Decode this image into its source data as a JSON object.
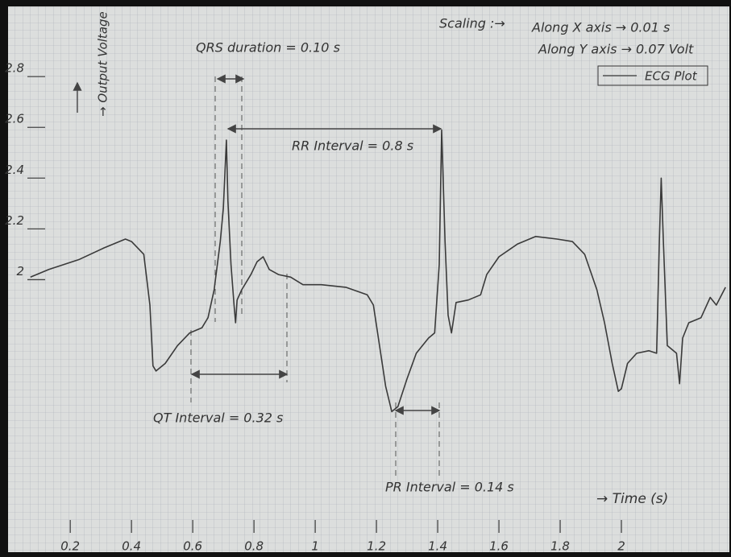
{
  "chart_data": {
    "type": "line",
    "x_label": "→ Time (s)",
    "y_label": "→ Output Voltage",
    "annotations": [
      "Scaling :→",
      "Along X axis → 0.01 s",
      "Along Y axis → 0.07 Volt",
      "QRS duration = 0.10 s",
      "RR Interval = 0.8 s",
      "QT Interval = 0.32 s",
      "PR Interval = 0.14 s"
    ],
    "x": [
      0.07,
      0.13,
      0.23,
      0.31,
      0.38,
      0.4,
      0.44,
      0.46,
      0.47,
      0.48,
      0.51,
      0.55,
      0.59,
      0.63,
      0.65,
      0.67,
      0.69,
      0.7,
      0.71,
      0.715,
      0.725,
      0.735,
      0.74,
      0.745,
      0.76,
      0.79,
      0.81,
      0.83,
      0.85,
      0.88,
      0.92,
      0.96,
      1.02,
      1.1,
      1.17,
      1.19,
      1.21,
      1.23,
      1.25,
      1.27,
      1.3,
      1.33,
      1.37,
      1.39,
      1.405,
      1.413,
      1.424,
      1.434,
      1.445,
      1.46,
      1.5,
      1.54,
      1.56,
      1.6,
      1.66,
      1.72,
      1.79,
      1.84,
      1.88,
      1.92,
      1.945,
      1.97,
      1.99,
      2.0,
      2.02,
      2.05,
      2.09,
      2.115,
      2.124,
      2.13,
      2.137,
      2.15,
      2.18,
      2.19,
      2.2,
      2.22,
      2.26,
      2.29,
      2.31,
      2.34
    ],
    "series": [
      {
        "name": "ECG Plot",
        "color": "#3a3a3a",
        "values": [
          2.01,
          2.04,
          2.08,
          2.125,
          2.16,
          2.15,
          2.1,
          1.9,
          1.66,
          1.64,
          1.67,
          1.74,
          1.79,
          1.81,
          1.85,
          1.96,
          2.15,
          2.28,
          2.55,
          2.31,
          2.06,
          1.9,
          1.83,
          1.92,
          1.96,
          2.02,
          2.07,
          2.09,
          2.04,
          2.02,
          2.01,
          1.98,
          1.98,
          1.97,
          1.94,
          1.9,
          1.74,
          1.58,
          1.48,
          1.5,
          1.61,
          1.71,
          1.77,
          1.79,
          2.06,
          2.59,
          2.15,
          1.86,
          1.79,
          1.91,
          1.92,
          1.94,
          2.02,
          2.09,
          2.14,
          2.17,
          2.16,
          2.15,
          2.1,
          1.96,
          1.83,
          1.67,
          1.56,
          1.57,
          1.67,
          1.71,
          1.72,
          1.71,
          2.15,
          2.4,
          2.15,
          1.74,
          1.71,
          1.59,
          1.77,
          1.83,
          1.85,
          1.93,
          1.9,
          1.97
        ]
      }
    ],
    "xlim": [
      0.01,
      2.35
    ],
    "ylim": [
      0.92,
      3.07
    ],
    "xticks": [
      0.2,
      0.4,
      0.6,
      0.8,
      1.0,
      1.2,
      1.4,
      1.6,
      1.8,
      2.0
    ],
    "yticks": [
      2.0,
      2.2,
      2.4,
      2.6,
      2.8
    ],
    "grid": true
  }
}
